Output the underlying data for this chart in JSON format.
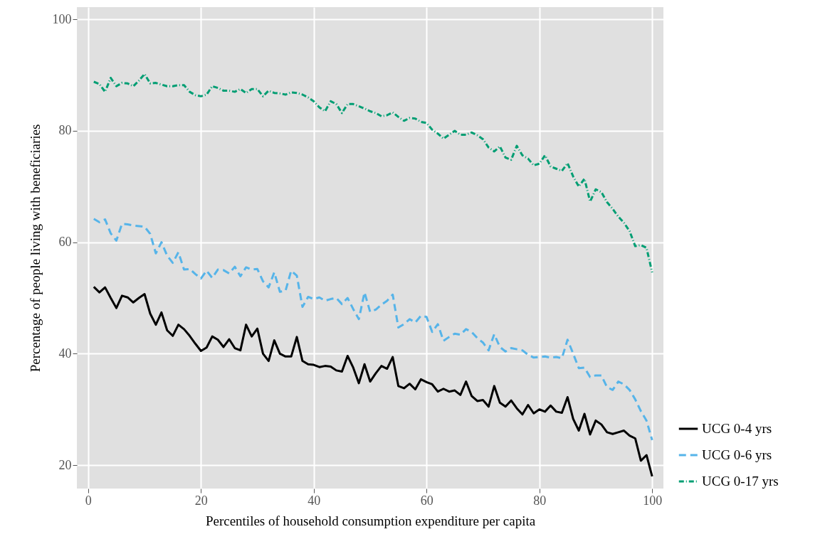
{
  "chart_data": {
    "type": "line",
    "xlabel": "Percentiles of household consumption expenditure per capita",
    "ylabel": "Percentage of people living with beneficiaries",
    "x": [
      1,
      2,
      3,
      4,
      5,
      6,
      7,
      8,
      9,
      10,
      11,
      12,
      13,
      14,
      15,
      16,
      17,
      18,
      19,
      20,
      21,
      22,
      23,
      24,
      25,
      26,
      27,
      28,
      29,
      30,
      31,
      32,
      33,
      34,
      35,
      36,
      37,
      38,
      39,
      40,
      41,
      42,
      43,
      44,
      45,
      46,
      47,
      48,
      49,
      50,
      51,
      52,
      53,
      54,
      55,
      56,
      57,
      58,
      59,
      60,
      61,
      62,
      63,
      64,
      65,
      66,
      67,
      68,
      69,
      70,
      71,
      72,
      73,
      74,
      75,
      76,
      77,
      78,
      79,
      80,
      81,
      82,
      83,
      84,
      85,
      86,
      87,
      88,
      89,
      90,
      91,
      92,
      93,
      94,
      95,
      96,
      97,
      98,
      99,
      100
    ],
    "series": [
      {
        "name": "UCG 0-4 yrs",
        "color": "#000000",
        "line_style": "solid",
        "values": [
          52,
          51,
          51.9,
          50,
          48.2,
          50.4,
          50.1,
          49.2,
          50,
          50.7,
          47.2,
          45.2,
          47.4,
          44.2,
          43.2,
          45.2,
          44.4,
          43.2,
          41.8,
          40.5,
          41.1,
          43.1,
          42.5,
          41.2,
          42.6,
          41,
          40.6,
          45.2,
          43.1,
          44.5,
          40,
          38.7,
          42.4,
          40,
          39.5,
          39.5,
          43,
          38.7,
          38.1,
          38,
          37.6,
          37.8,
          37.7,
          37,
          36.8,
          39.6,
          37.5,
          34.7,
          38.1,
          35,
          36.5,
          37.8,
          37.3,
          39.4,
          34.2,
          33.8,
          34.6,
          33.6,
          35.4,
          34.9,
          34.5,
          33.2,
          33.7,
          33.2,
          33.4,
          32.6,
          35,
          32.4,
          31.5,
          31.7,
          30.5,
          34.2,
          31.2,
          30.5,
          31.6,
          30.2,
          29.1,
          30.8,
          29.3,
          30,
          29.6,
          30.7,
          29.6,
          29.4,
          32.2,
          28.3,
          26.2,
          29.2,
          25.5,
          28,
          27.3,
          25.9,
          25.6,
          25.9,
          26.2,
          25.3,
          24.8,
          20.8,
          21.8,
          18
        ]
      },
      {
        "name": "UCG 0-6 yrs",
        "color": "#56b4e9",
        "line_style": "dashed",
        "values": [
          64.2,
          63.6,
          64.1,
          61.6,
          60.3,
          63.3,
          63.2,
          63,
          62.9,
          62.8,
          61.5,
          58,
          60,
          57.6,
          56.3,
          58.2,
          55.1,
          55.2,
          54.3,
          53.5,
          54.9,
          53.6,
          55.1,
          55,
          54.4,
          55.6,
          53.9,
          55.5,
          55.1,
          55.2,
          53,
          51.9,
          54.6,
          51.1,
          51.3,
          54.9,
          54,
          48.4,
          50.2,
          49.8,
          50.1,
          49.5,
          49.8,
          50,
          48.9,
          50,
          48,
          46.2,
          51,
          47.5,
          47.9,
          48.8,
          49.5,
          50.6,
          44.7,
          45.3,
          46.2,
          45.6,
          46.8,
          46.6,
          43.9,
          45.3,
          42.3,
          43,
          43.6,
          43.4,
          44.4,
          43.9,
          42.8,
          42,
          40.6,
          43.5,
          41.2,
          40.4,
          41,
          40.8,
          40.6,
          39.8,
          39.3,
          39.4,
          39.5,
          39.3,
          39.4,
          39.2,
          42.5,
          40,
          37.4,
          37.5,
          35.8,
          36.1,
          36.1,
          34,
          33.5,
          35,
          34.5,
          33.5,
          31.8,
          29.7,
          28,
          24.5
        ]
      },
      {
        "name": "UCG 0-17 yrs",
        "color": "#009e73",
        "line_style": "dotted",
        "values": [
          88.8,
          88.4,
          87,
          89.5,
          88,
          88.6,
          88.5,
          88,
          89,
          90.2,
          88.5,
          88.6,
          88.3,
          88,
          88,
          88.2,
          88.2,
          87,
          86.4,
          86.2,
          86.5,
          88,
          87.7,
          87.2,
          87.2,
          87,
          87.5,
          86.8,
          87.5,
          87.5,
          86.2,
          87.2,
          86.8,
          86.7,
          86.5,
          86.9,
          86.8,
          86.5,
          86,
          85.3,
          84.2,
          83.5,
          85.3,
          84.8,
          83.2,
          84.8,
          84.8,
          84.4,
          84,
          83.5,
          83.2,
          82.6,
          82.8,
          83.3,
          82.5,
          81.8,
          82.3,
          82.2,
          81.6,
          81.4,
          80.2,
          79.5,
          78.6,
          79.3,
          80,
          79.3,
          79.3,
          79.7,
          79.2,
          78.5,
          77,
          76.3,
          77.2,
          75.2,
          74.8,
          77.3,
          75.6,
          75,
          73.8,
          74.1,
          75.6,
          73.6,
          73.2,
          72.8,
          74.2,
          71.8,
          70,
          71.4,
          67.3,
          69.5,
          69,
          67.2,
          66,
          64.6,
          63.5,
          62,
          59.3,
          59.5,
          59,
          54.6
        ]
      }
    ],
    "xlim": [
      -2,
      102
    ],
    "ylim": [
      15.8,
      102.2
    ],
    "xticks": [
      0,
      20,
      40,
      60,
      80,
      100
    ],
    "yticks": [
      20,
      40,
      60,
      80,
      100
    ],
    "grid": true,
    "legend": "right"
  }
}
